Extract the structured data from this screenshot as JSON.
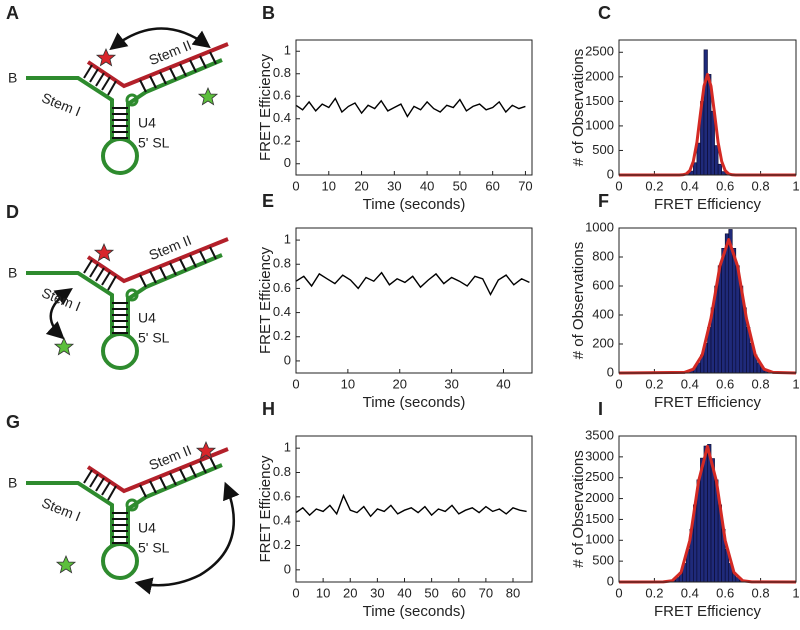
{
  "diagrams": [
    {
      "panel_label": "A",
      "strand_label": "B",
      "stem_1": "Stem I",
      "stem_2": "Stem II",
      "name": "U4",
      "sub": "5' SL"
    },
    {
      "panel_label": "D",
      "strand_label": "B",
      "stem_1": "Stem I",
      "stem_2": "Stem II",
      "name": "U4",
      "sub": "5' SL"
    },
    {
      "panel_label": "G",
      "strand_label": "B",
      "stem_1": "Stem I",
      "stem_2": "Stem II",
      "name": "U4",
      "sub": "5' SL"
    }
  ],
  "chart_data": [
    {
      "type": "line",
      "panel_label": "B",
      "xlabel": "Time (seconds)",
      "ylabel": "FRET Efficiency",
      "color": "#000000",
      "x": [
        0,
        2,
        4,
        6,
        8,
        10,
        12,
        14,
        16,
        18,
        20,
        22,
        24,
        26,
        28,
        30,
        32,
        34,
        36,
        38,
        40,
        42,
        44,
        46,
        48,
        50,
        52,
        54,
        56,
        58,
        60,
        62,
        64,
        66,
        68,
        70
      ],
      "values": [
        0.52,
        0.48,
        0.55,
        0.47,
        0.53,
        0.5,
        0.58,
        0.46,
        0.51,
        0.54,
        0.45,
        0.52,
        0.49,
        0.56,
        0.47,
        0.5,
        0.53,
        0.42,
        0.51,
        0.48,
        0.55,
        0.49,
        0.46,
        0.52,
        0.5,
        0.57,
        0.47,
        0.51,
        0.53,
        0.48,
        0.5,
        0.55,
        0.46,
        0.52,
        0.49,
        0.51
      ],
      "xlim": [
        0,
        72
      ],
      "xticks": [
        0,
        10,
        20,
        30,
        40,
        50,
        60,
        70
      ],
      "ylim": [
        -0.1,
        1.1
      ],
      "yticks": [
        0,
        0.2,
        0.4,
        0.6,
        0.8,
        1
      ]
    },
    {
      "type": "histogram",
      "panel_label": "C",
      "xlabel": "FRET Efficiency",
      "ylabel": "# of Observations",
      "color": "#1f2a7a",
      "bins": [
        0.38,
        0.4,
        0.42,
        0.44,
        0.46,
        0.48,
        0.5,
        0.52,
        0.54,
        0.56,
        0.58,
        0.6,
        0.62
      ],
      "values": [
        30,
        80,
        250,
        650,
        1500,
        2550,
        2050,
        1300,
        600,
        220,
        70,
        20
      ],
      "fit": {
        "color": "#d42a24",
        "x": [
          0,
          0.34,
          0.36,
          0.38,
          0.4,
          0.42,
          0.44,
          0.46,
          0.48,
          0.5,
          0.52,
          0.54,
          0.56,
          0.58,
          0.6,
          0.62,
          0.64,
          0.66,
          1
        ],
        "values": [
          0,
          1,
          5,
          23,
          90,
          277,
          665,
          1243,
          1809,
          2050,
          1809,
          1243,
          665,
          277,
          90,
          23,
          5,
          1,
          0
        ]
      },
      "xlim": [
        0,
        1
      ],
      "xticks": [
        0,
        0.2,
        0.4,
        0.6,
        0.8,
        1
      ],
      "ylim": [
        0,
        2750
      ],
      "yticks": [
        0,
        500,
        1000,
        1500,
        2000,
        2500
      ]
    },
    {
      "type": "line",
      "panel_label": "E",
      "xlabel": "Time (seconds)",
      "ylabel": "FRET Efficiency",
      "color": "#000000",
      "x": [
        0,
        1.5,
        3,
        4.5,
        6,
        7.5,
        9,
        10.5,
        12,
        13.5,
        15,
        16.5,
        18,
        19.5,
        21,
        22.5,
        24,
        25.5,
        27,
        28.5,
        30,
        31.5,
        33,
        34.5,
        36,
        37.5,
        39,
        40.5,
        42,
        43.5,
        45
      ],
      "values": [
        0.66,
        0.7,
        0.62,
        0.72,
        0.68,
        0.64,
        0.71,
        0.67,
        0.6,
        0.69,
        0.66,
        0.73,
        0.63,
        0.68,
        0.65,
        0.7,
        0.61,
        0.67,
        0.72,
        0.64,
        0.69,
        0.66,
        0.62,
        0.7,
        0.68,
        0.55,
        0.67,
        0.71,
        0.63,
        0.68,
        0.65
      ],
      "xlim": [
        0,
        45.5
      ],
      "xticks": [
        0,
        10,
        20,
        30,
        40
      ],
      "ylim": [
        -0.1,
        1.1
      ],
      "yticks": [
        0,
        0.2,
        0.4,
        0.6,
        0.8,
        1
      ]
    },
    {
      "type": "histogram",
      "panel_label": "F",
      "xlabel": "FRET Efficiency",
      "ylabel": "# of Observations",
      "color": "#1f2a7a",
      "bins": [
        0.4,
        0.42,
        0.44,
        0.46,
        0.48,
        0.5,
        0.52,
        0.54,
        0.56,
        0.58,
        0.6,
        0.62,
        0.64,
        0.66,
        0.68,
        0.7,
        0.72,
        0.74,
        0.76,
        0.78,
        0.8,
        0.82,
        0.84,
        0.86
      ],
      "values": [
        18,
        37,
        70,
        125,
        205,
        315,
        450,
        600,
        740,
        860,
        960,
        990,
        860,
        740,
        600,
        450,
        315,
        205,
        125,
        70,
        37,
        18,
        9
      ],
      "fit": {
        "color": "#d42a24",
        "x": [
          0,
          0.37,
          0.42,
          0.47,
          0.52,
          0.57,
          0.62,
          0.67,
          0.72,
          0.77,
          0.82,
          0.87,
          1
        ],
        "values": [
          0,
          4,
          26,
          124,
          378,
          737,
          920,
          737,
          378,
          124,
          26,
          4,
          0
        ]
      },
      "xlim": [
        0,
        1
      ],
      "xticks": [
        0,
        0.2,
        0.4,
        0.6,
        0.8,
        1
      ],
      "ylim": [
        0,
        1000
      ],
      "yticks": [
        0,
        200,
        400,
        600,
        800,
        1000
      ]
    },
    {
      "type": "line",
      "panel_label": "H",
      "xlabel": "Time (seconds)",
      "ylabel": "FRET Efficiency",
      "color": "#000000",
      "x": [
        0,
        2.5,
        5,
        7.5,
        10,
        12.5,
        15,
        17.5,
        20,
        22.5,
        25,
        27.5,
        30,
        32.5,
        35,
        37.5,
        40,
        42.5,
        45,
        47.5,
        50,
        52.5,
        55,
        57.5,
        60,
        62.5,
        65,
        67.5,
        70,
        72.5,
        75,
        77.5,
        80,
        82.5,
        85
      ],
      "values": [
        0.47,
        0.51,
        0.45,
        0.5,
        0.48,
        0.53,
        0.46,
        0.61,
        0.49,
        0.47,
        0.52,
        0.44,
        0.5,
        0.48,
        0.53,
        0.46,
        0.49,
        0.51,
        0.47,
        0.52,
        0.45,
        0.5,
        0.48,
        0.53,
        0.46,
        0.49,
        0.51,
        0.47,
        0.52,
        0.48,
        0.5,
        0.46,
        0.51,
        0.49,
        0.48
      ],
      "xlim": [
        0,
        87
      ],
      "xticks": [
        0,
        10,
        20,
        30,
        40,
        50,
        60,
        70,
        80
      ],
      "ylim": [
        -0.1,
        1.1
      ],
      "yticks": [
        0,
        0.2,
        0.4,
        0.6,
        0.8,
        1
      ]
    },
    {
      "type": "histogram",
      "panel_label": "I",
      "xlabel": "FRET Efficiency",
      "ylabel": "# of Observations",
      "color": "#1f2a7a",
      "bins": [
        0.3,
        0.32,
        0.34,
        0.36,
        0.38,
        0.4,
        0.42,
        0.44,
        0.46,
        0.48,
        0.5,
        0.52,
        0.54,
        0.56,
        0.58,
        0.6,
        0.62,
        0.64,
        0.66,
        0.68,
        0.7
      ],
      "values": [
        46,
        108,
        230,
        445,
        790,
        1265,
        1850,
        2450,
        2970,
        3260,
        3300,
        2960,
        2450,
        1850,
        1265,
        790,
        445,
        230,
        108,
        46
      ],
      "fit": {
        "color": "#d42a24",
        "x": [
          0,
          0.25,
          0.3,
          0.35,
          0.4,
          0.45,
          0.5,
          0.55,
          0.6,
          0.65,
          0.7,
          0.75,
          1
        ],
        "values": [
          0,
          2,
          29,
          227,
          995,
          2418,
          3250,
          2418,
          995,
          227,
          29,
          2,
          0
        ]
      },
      "xlim": [
        0,
        1
      ],
      "xticks": [
        0,
        0.2,
        0.4,
        0.6,
        0.8,
        1
      ],
      "ylim": [
        0,
        3500
      ],
      "yticks": [
        0,
        500,
        1000,
        1500,
        2000,
        2500,
        3000,
        3500
      ]
    }
  ]
}
